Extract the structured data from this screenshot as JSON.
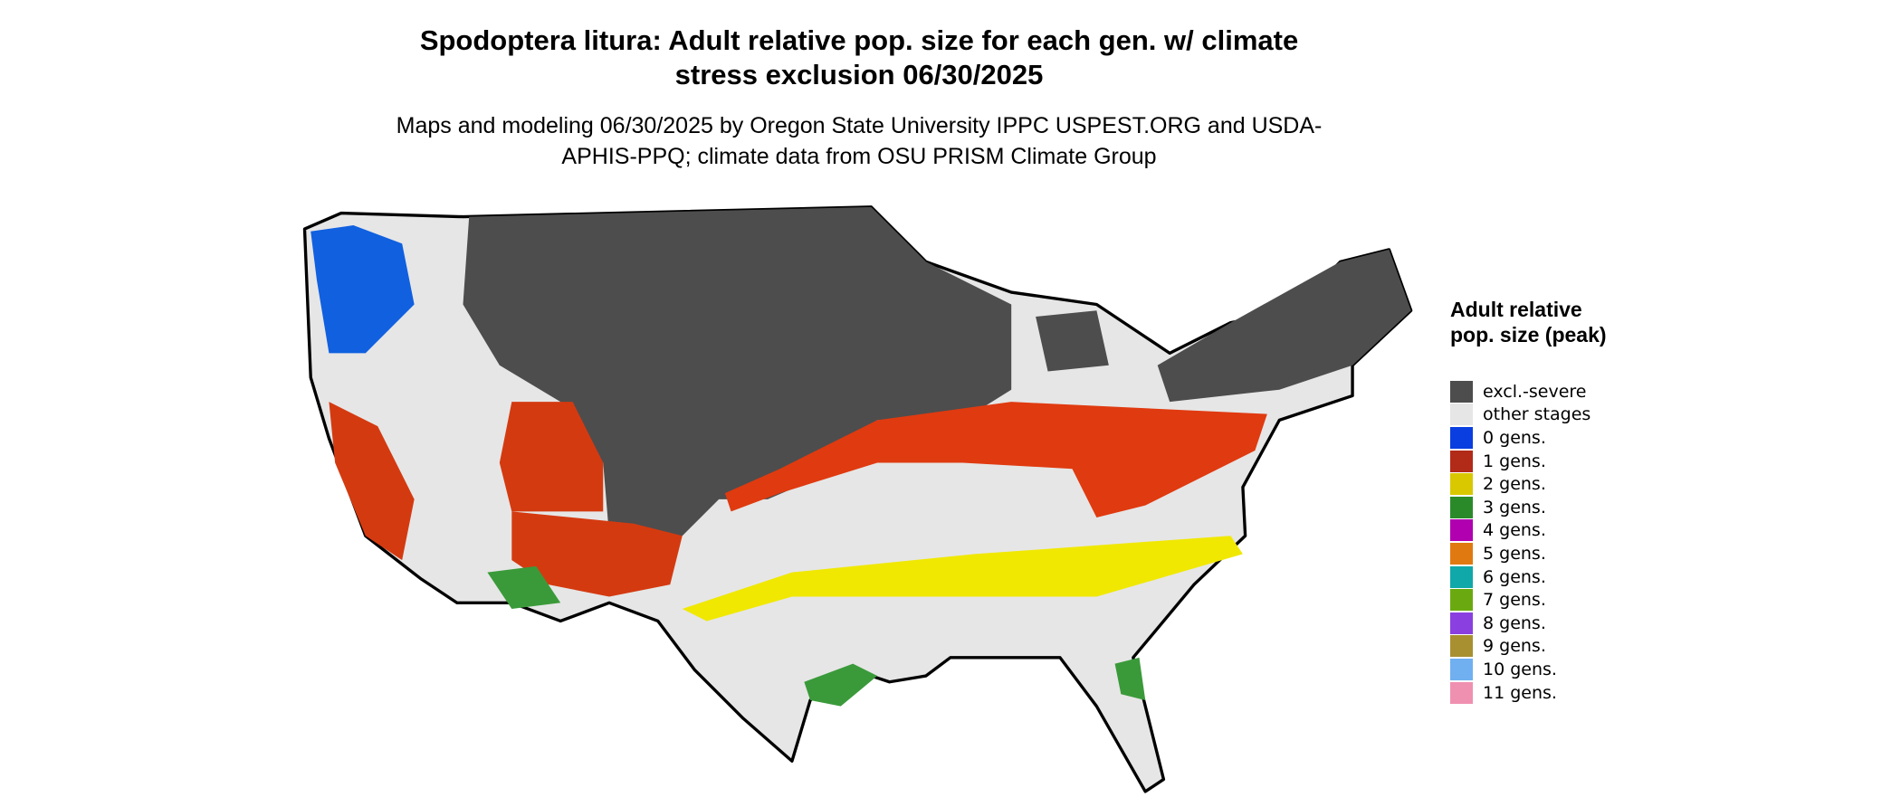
{
  "title": "Spodoptera litura: Adult relative pop. size for each gen. w/ climate stress exclusion 06/30/2025",
  "subtitle": "Maps and modeling 06/30/2025 by Oregon State University IPPC USPEST.ORG and USDA-APHIS-PPQ; climate data from OSU PRISM Climate Group",
  "legend": {
    "title": "Adult relative pop. size (peak)",
    "items": [
      {
        "label": "excl.-severe",
        "color": "#4d4d4d"
      },
      {
        "label": "other stages",
        "color": "#e6e6e6"
      },
      {
        "label": "0 gens.",
        "color": "#0a3ee0"
      },
      {
        "label": "1 gens.",
        "color": "#b22a18"
      },
      {
        "label": "2 gens.",
        "color": "#d9c800"
      },
      {
        "label": "3 gens.",
        "color": "#2a8a2a"
      },
      {
        "label": "4 gens.",
        "color": "#b000b0"
      },
      {
        "label": "5 gens.",
        "color": "#e07a10"
      },
      {
        "label": "6 gens.",
        "color": "#10a8a8"
      },
      {
        "label": "7 gens.",
        "color": "#6aaa10"
      },
      {
        "label": "8 gens.",
        "color": "#8a40e0"
      },
      {
        "label": "9 gens.",
        "color": "#a89030"
      },
      {
        "label": "10 gens.",
        "color": "#70b0f0"
      },
      {
        "label": "11 gens.",
        "color": "#f090b0"
      }
    ]
  }
}
